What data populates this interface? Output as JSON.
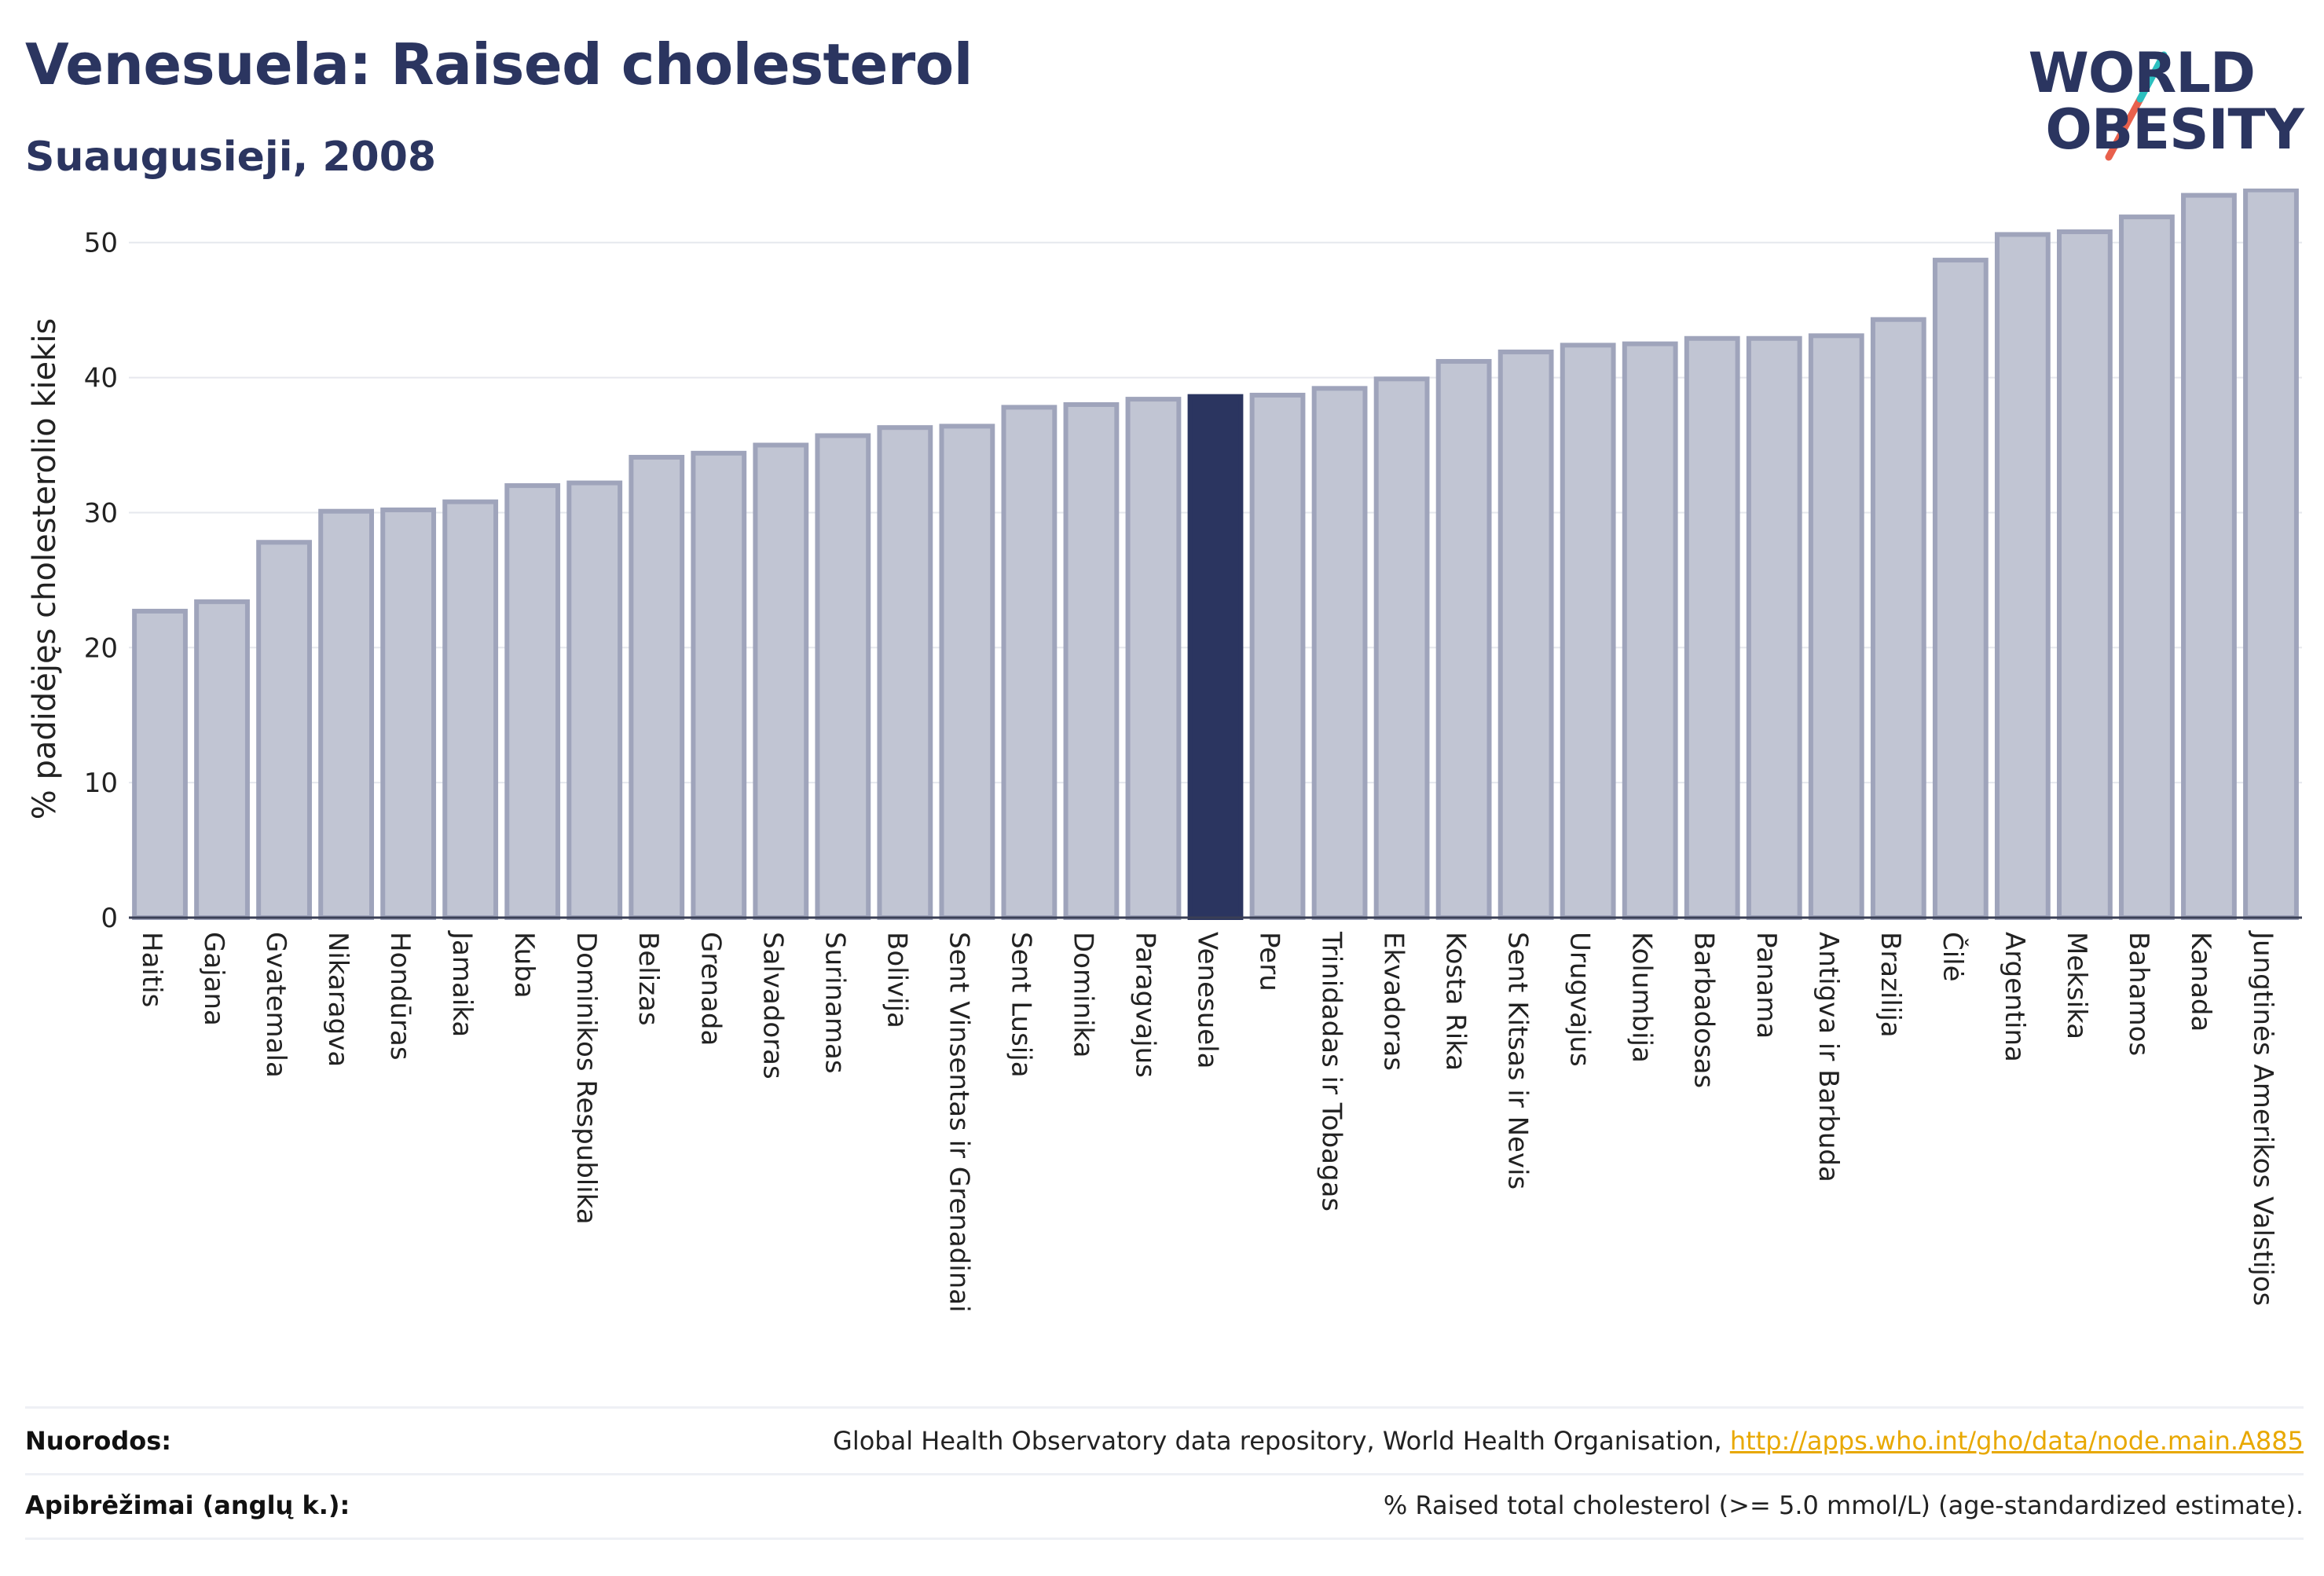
{
  "header": {
    "title": "Venesuela: Raised cholesterol",
    "subtitle": "Suaugusieji, 2008"
  },
  "logo": {
    "line1": "WORLD",
    "line2": "OBESITY"
  },
  "chart_data": {
    "type": "bar",
    "ylabel": "% padidėjęs cholesterolio kiekis",
    "xlabel": "",
    "ylim": [
      0,
      54
    ],
    "yticks": [
      0,
      10,
      20,
      30,
      40,
      50
    ],
    "grid": true,
    "highlight": "Venesuela",
    "colors": {
      "bar": "#c1c5d3",
      "bar_edge": "#9fa4bb",
      "highlight": "#2b3560"
    },
    "categories": [
      "Haitis",
      "Gajana",
      "Gvatemala",
      "Nikaragva",
      "Hondūras",
      "Jamaika",
      "Kuba",
      "Dominikos Respublika",
      "Belizas",
      "Grenada",
      "Salvadoras",
      "Surinamas",
      "Bolivija",
      "Sent Vinsentas ir Grenadinai",
      "Sent Lusija",
      "Dominika",
      "Paragvajus",
      "Venesuela",
      "Peru",
      "Trinidadas ir Tobagas",
      "Ekvadoras",
      "Kosta Rika",
      "Sent Kitsas ir Nevis",
      "Urugvajus",
      "Kolumbija",
      "Barbadosas",
      "Panama",
      "Antigva ir Barbuda",
      "Brazilija",
      "Čilė",
      "Argentina",
      "Meksika",
      "Bahamos",
      "Kanada",
      "Jungtinės Amerikos Valstijos"
    ],
    "values": [
      22.7,
      23.4,
      27.8,
      30.1,
      30.2,
      30.8,
      32.0,
      32.2,
      34.1,
      34.4,
      35.0,
      35.7,
      36.3,
      36.4,
      37.8,
      38.0,
      38.4,
      38.6,
      38.7,
      39.2,
      39.9,
      41.2,
      41.9,
      42.4,
      42.5,
      42.9,
      42.9,
      43.1,
      44.3,
      48.7,
      50.6,
      50.8,
      51.9,
      53.5,
      53.9
    ]
  },
  "footer": {
    "references_label": "Nuorodos:",
    "references_text": "Global Health Observatory data repository, World Health Organisation, ",
    "references_link": "http://apps.who.int/gho/data/node.main.A885",
    "definitions_label": "Apibrėžimai (anglų k.):",
    "definitions_text": "% Raised total cholesterol (>= 5.0 mmol/L) (age-standardized estimate)."
  }
}
